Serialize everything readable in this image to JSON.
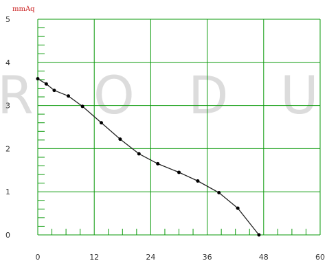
{
  "watermark_text": "RODU",
  "chart_data": {
    "type": "line",
    "ylabel": "mmAq",
    "xlim": [
      0,
      60
    ],
    "ylim": [
      0,
      5
    ],
    "x_ticks": [
      0,
      12,
      24,
      36,
      48,
      60
    ],
    "y_ticks": [
      0,
      1,
      2,
      3,
      4,
      5
    ],
    "grid": true,
    "colors": {
      "grid": "#0a9a0a",
      "line": "#222222",
      "marker": "#000000",
      "unit_label": "#cc2222"
    },
    "series": [
      {
        "x": [
          0,
          1.8,
          3.5,
          6.5,
          9.5,
          13.5,
          17.5,
          21.5,
          25.5,
          30,
          34,
          38.5,
          42.5,
          47
        ],
        "y": [
          3.62,
          3.5,
          3.35,
          3.22,
          2.98,
          2.6,
          2.22,
          1.88,
          1.65,
          1.45,
          1.25,
          0.98,
          0.62,
          0
        ]
      }
    ]
  }
}
